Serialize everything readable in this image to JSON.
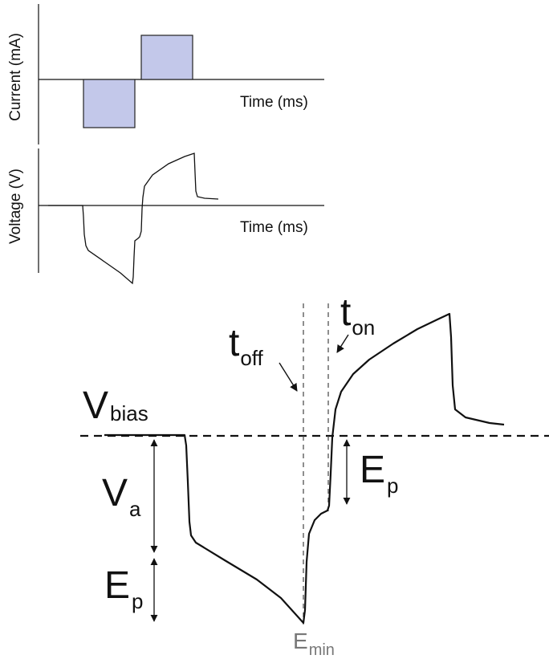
{
  "top_panel": {
    "current_axis_label": "Current (mA)",
    "voltage_axis_label": "Voltage (V)",
    "time_label_current": "Time (ms)",
    "time_label_voltage": "Time (ms)",
    "pulse_color": "#c3c8ea"
  },
  "main_panel": {
    "v_bias": {
      "main": "V",
      "sub": "bias"
    },
    "v_a": {
      "main": "V",
      "sub": "a"
    },
    "e_p_left": {
      "main": "E",
      "sub": "p"
    },
    "e_p_right": {
      "main": "E",
      "sub": "p"
    },
    "t_off": {
      "main": "t",
      "sub": "off"
    },
    "t_on": {
      "main": "t",
      "sub": "on"
    },
    "e_min": {
      "main": "E",
      "sub": "min"
    },
    "e_min_color": "#777777"
  }
}
